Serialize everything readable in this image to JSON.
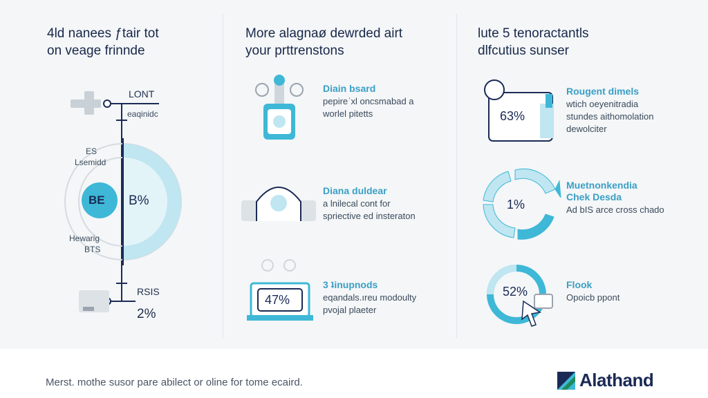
{
  "left": {
    "title_line1": "4ld nanees ƒtair tot",
    "title_line2": "on veage frinnde",
    "top_label": "LONT",
    "top_sub": "eaqinidc",
    "ring_top_label_1": "ES",
    "ring_top_label_2": "Lsemidd",
    "ring_center_badge": "BE",
    "ring_percent": "B%",
    "ring_bottom_label_1": "Hewarig",
    "ring_bottom_label_2": "BTS",
    "bottom_label": "RSIS",
    "bottom_value": "2%"
  },
  "middle": {
    "title_line1": "More alagnaø dewrded airt",
    "title_line2": "your prttrenstons",
    "items": [
      {
        "heading": "Diain bsard",
        "line1": "pepireˈxl oncsmabad a",
        "line2": "worlel pitetts"
      },
      {
        "heading": "Diana duldear",
        "line1": "a lnilecal cont for",
        "line2": "spriective ed insteraton"
      },
      {
        "heading": "3 ʇinupnods",
        "line1": "eqandals.ıreu modoulty",
        "line2": "pvojal plaeter"
      }
    ],
    "item3_percent": "47%"
  },
  "right": {
    "title_line1": "lute 5 tenoractantls",
    "title_line2": "dlfcutius sunser",
    "items": [
      {
        "heading": "Rougent dimels",
        "line1": "wtich oeyenitradia",
        "line2": "stundes aithomolation",
        "line3": "dewolciter",
        "percent": "63%"
      },
      {
        "heading": "Muetnonkendia",
        "heading2": "Chek Desda",
        "line1": "Ad bIS arce cross chado",
        "percent": "1%"
      },
      {
        "heading": "Flook",
        "line1": "Opoicb ppont",
        "percent": "52%"
      }
    ]
  },
  "footer": {
    "text": "Merst. mothe susor pare abilect or oline for tome ecaird.",
    "brand": "Alathand"
  },
  "colors": {
    "accent": "#3eb8d6",
    "accent_light": "#bfe6f1",
    "navy": "#1b2a55",
    "gray": "#9aa4ae"
  }
}
